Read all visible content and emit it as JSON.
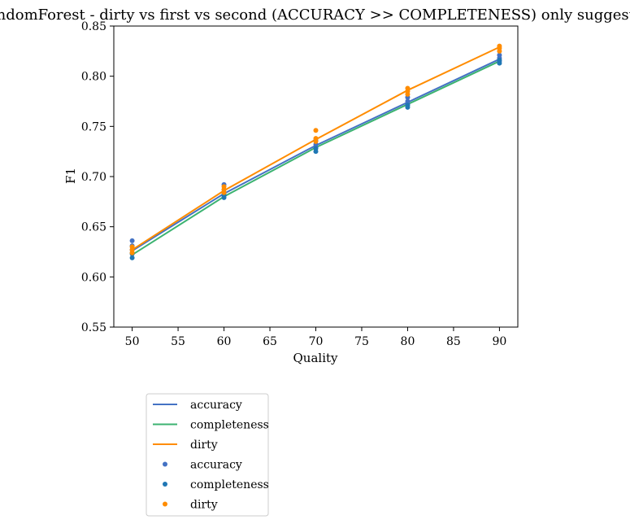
{
  "chart_data": {
    "type": "line",
    "title": "RandomForest - dirty vs first vs second (ACCURACY >> COMPLETENESS) only suggested",
    "xlabel": "Quality",
    "ylabel": "F1",
    "xlim": [
      48,
      92
    ],
    "ylim": [
      0.55,
      0.85
    ],
    "xticks": [
      50,
      55,
      60,
      65,
      70,
      75,
      80,
      85,
      90
    ],
    "yticks": [
      0.55,
      0.6,
      0.65,
      0.7,
      0.75,
      0.8,
      0.85
    ],
    "x": [
      50,
      60,
      70,
      80,
      90
    ],
    "grid": false,
    "legend_placement": "below-left",
    "series": [
      {
        "name": "accuracy",
        "kind": "line",
        "color": "#4472c4",
        "values": [
          0.626,
          0.683,
          0.731,
          0.774,
          0.817
        ]
      },
      {
        "name": "completeness",
        "kind": "line",
        "color": "#3cb371",
        "values": [
          0.622,
          0.68,
          0.729,
          0.772,
          0.815
        ]
      },
      {
        "name": "dirty",
        "kind": "line",
        "color": "#ff8c00",
        "values": [
          0.627,
          0.686,
          0.737,
          0.786,
          0.829
        ]
      },
      {
        "name": "accuracy",
        "kind": "scatter",
        "color": "#4472c4",
        "points": [
          [
            50,
            0.636
          ],
          [
            50,
            0.631
          ],
          [
            50,
            0.627
          ],
          [
            50,
            0.624
          ],
          [
            60,
            0.692
          ],
          [
            60,
            0.687
          ],
          [
            60,
            0.683
          ],
          [
            70,
            0.736
          ],
          [
            70,
            0.732
          ],
          [
            70,
            0.729
          ],
          [
            80,
            0.779
          ],
          [
            80,
            0.775
          ],
          [
            80,
            0.772
          ],
          [
            90,
            0.821
          ],
          [
            90,
            0.818
          ],
          [
            90,
            0.815
          ]
        ]
      },
      {
        "name": "completeness",
        "kind": "scatter",
        "color": "#1f77b4",
        "points": [
          [
            50,
            0.623
          ],
          [
            50,
            0.619
          ],
          [
            60,
            0.681
          ],
          [
            60,
            0.679
          ],
          [
            70,
            0.728
          ],
          [
            70,
            0.725
          ],
          [
            80,
            0.771
          ],
          [
            80,
            0.769
          ],
          [
            90,
            0.816
          ],
          [
            90,
            0.813
          ]
        ]
      },
      {
        "name": "dirty",
        "kind": "scatter",
        "color": "#ff8c00",
        "points": [
          [
            50,
            0.63
          ],
          [
            50,
            0.627
          ],
          [
            50,
            0.624
          ],
          [
            60,
            0.69
          ],
          [
            60,
            0.687
          ],
          [
            60,
            0.684
          ],
          [
            70,
            0.746
          ],
          [
            70,
            0.738
          ],
          [
            70,
            0.735
          ],
          [
            80,
            0.788
          ],
          [
            80,
            0.785
          ],
          [
            80,
            0.782
          ],
          [
            90,
            0.83
          ],
          [
            90,
            0.828
          ],
          [
            90,
            0.825
          ]
        ]
      }
    ]
  }
}
